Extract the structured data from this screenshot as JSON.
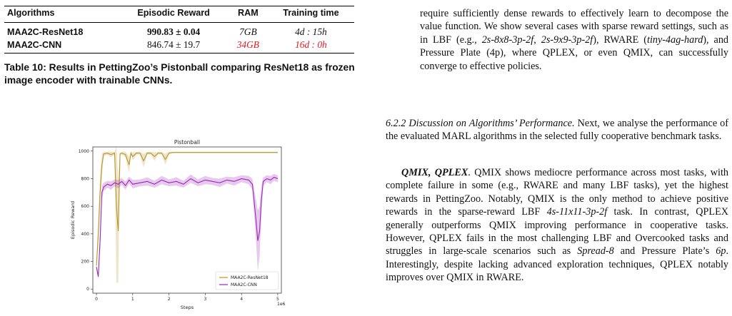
{
  "table": {
    "headers": [
      "Algorithms",
      "Episodic Reward",
      "RAM",
      "Training time"
    ],
    "rows": [
      {
        "algo": "MAA2C-ResNet18",
        "reward": "990.83 ± 0.04",
        "ram": "7GB",
        "time": "4d : 15h"
      },
      {
        "algo": "MAA2C-CNN",
        "reward": "846.74 ± 19.7",
        "ram": "34GB",
        "time": "16d : 0h"
      }
    ],
    "caption": "Table 10: Results in PettingZoo’s Pistonball comparing ResNet18 as frozen image encoder with trainable CNNs."
  },
  "colors": {
    "highlight_red": "#e8161c",
    "resnet": "#b8962a",
    "cnn": "#9a27b6"
  },
  "chart_data": {
    "type": "line",
    "title": "Pistonball",
    "xlabel": "Steps",
    "ylabel": "Episodic Reward",
    "x_scale_note": "1e6",
    "xlim": [
      -0.1,
      5.1
    ],
    "ylim": [
      -30,
      1030
    ],
    "xticks": [
      0,
      1,
      2,
      3,
      4,
      5
    ],
    "yticks": [
      0,
      200,
      400,
      600,
      800,
      1000
    ],
    "legend_position": "lower-right",
    "grid": false,
    "series": [
      {
        "name": "MAA2C-ResNet18",
        "x": [
          0,
          0.05,
          0.1,
          0.15,
          0.2,
          0.3,
          0.4,
          0.5,
          0.55,
          0.6,
          0.65,
          0.7,
          0.8,
          0.9,
          0.95,
          1.0,
          1.1,
          1.2,
          1.3,
          1.4,
          1.5,
          1.6,
          1.7,
          1.8,
          1.9,
          2.0,
          2.1,
          2.5,
          3.0,
          3.5,
          4.0,
          4.5,
          5.0
        ],
        "y": [
          170,
          400,
          700,
          900,
          980,
          985,
          975,
          985,
          600,
          420,
          980,
          985,
          975,
          900,
          985,
          960,
          985,
          985,
          930,
          985,
          985,
          960,
          985,
          985,
          940,
          985,
          990,
          990,
          990,
          990,
          990,
          990,
          990
        ],
        "band": [
          20,
          80,
          120,
          80,
          15,
          10,
          20,
          10,
          550,
          380,
          10,
          10,
          20,
          60,
          10,
          30,
          10,
          10,
          50,
          10,
          10,
          30,
          10,
          10,
          40,
          10,
          5,
          5,
          5,
          5,
          5,
          5,
          5
        ]
      },
      {
        "name": "MAA2C-CNN",
        "x": [
          0,
          0.05,
          0.1,
          0.15,
          0.2,
          0.3,
          0.4,
          0.5,
          0.6,
          0.7,
          0.8,
          0.9,
          1.0,
          1.2,
          1.4,
          1.6,
          1.8,
          2.0,
          2.2,
          2.4,
          2.6,
          2.8,
          3.0,
          3.2,
          3.4,
          3.6,
          3.8,
          4.0,
          4.2,
          4.3,
          4.4,
          4.45,
          4.5,
          4.55,
          4.6,
          4.7,
          4.8,
          4.9,
          5.0
        ],
        "y": [
          160,
          90,
          350,
          700,
          740,
          760,
          750,
          770,
          760,
          780,
          750,
          790,
          760,
          770,
          780,
          760,
          790,
          770,
          780,
          760,
          800,
          770,
          790,
          780,
          770,
          790,
          780,
          800,
          790,
          760,
          500,
          350,
          420,
          650,
          780,
          800,
          790,
          810,
          800
        ],
        "band": [
          20,
          20,
          60,
          50,
          30,
          25,
          30,
          25,
          30,
          25,
          30,
          25,
          30,
          25,
          30,
          25,
          30,
          25,
          30,
          25,
          30,
          25,
          30,
          25,
          30,
          25,
          30,
          25,
          30,
          40,
          150,
          220,
          180,
          100,
          30,
          25,
          30,
          25,
          25
        ]
      }
    ]
  },
  "right": {
    "p1": [
      "require sufficiently dense rewards to effectively learn to decompose the value function. We show several cases with sparse reward settings, such as in LBF (e.g., ",
      "2s-8x8-3p-2f",
      ", ",
      "2s-9x9-3p-2f",
      "), RWARE (",
      "tiny-4ag-hard",
      "), and Pressure Plate (4p), where QPLEX, or even QMIX, can successfully converge to effective policies."
    ],
    "p2_heading": "6.2.2   Discussion on Algorithms’ Performance.",
    "p2_text": " Next, we analyse the performance of the evaluated MARL algorithms in the selected fully cooperative benchmark tasks.",
    "p3_heading": "QMIX, QPLEX",
    "p3": [
      ". QMIX shows mediocre performance across most tasks, with complete failure in some (e.g., RWARE and many LBF tasks), yet the highest rewards in PettingZoo. Notably, QMIX is the only method to achieve positive rewards in the sparse-reward LBF ",
      "4s-11x11-3p-2f",
      " task. In contrast, QPLEX generally outperforms QMIX improving performance in cooperative tasks. However, QPLEX fails in the most challenging LBF and Overcooked tasks and struggles in large-scale scenarios such as ",
      "Spread-8",
      " and Pressure Plate’s ",
      "6p",
      ". Interestingly, despite lacking advanced exploration techniques, QPLEX notably improves over QMIX in RWARE."
    ]
  }
}
